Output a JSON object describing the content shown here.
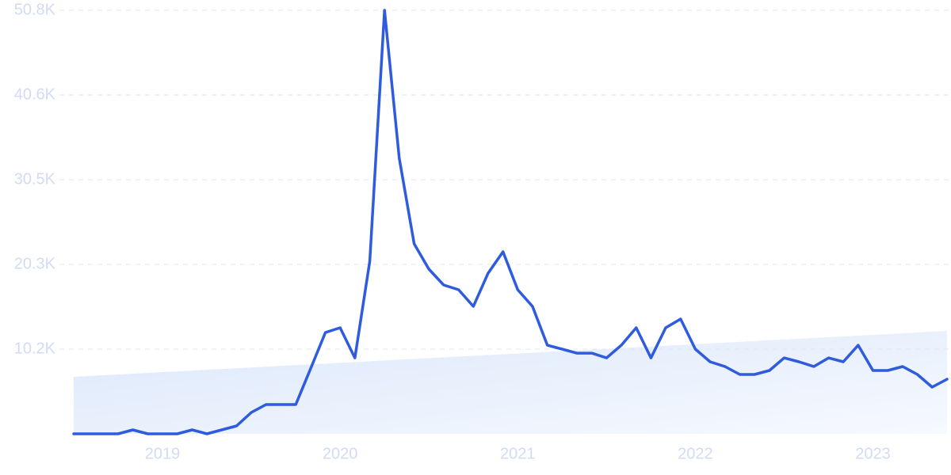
{
  "chart_data": {
    "type": "line",
    "x": [
      2018.5,
      2018.583,
      2018.667,
      2018.75,
      2018.833,
      2018.917,
      2019,
      2019.083,
      2019.167,
      2019.25,
      2019.333,
      2019.417,
      2019.5,
      2019.583,
      2019.667,
      2019.75,
      2019.833,
      2019.917,
      2020,
      2020.083,
      2020.167,
      2020.25,
      2020.333,
      2020.417,
      2020.5,
      2020.583,
      2020.667,
      2020.75,
      2020.833,
      2020.917,
      2021,
      2021.083,
      2021.167,
      2021.25,
      2021.333,
      2021.417,
      2021.5,
      2021.583,
      2021.667,
      2021.75,
      2021.833,
      2021.917,
      2022,
      2022.083,
      2022.167,
      2022.25,
      2022.333,
      2022.417,
      2022.5,
      2022.583,
      2022.667,
      2022.75,
      2022.833,
      2022.917,
      2023,
      2023.083,
      2023.167,
      2023.25,
      2023.333,
      2023.417
    ],
    "values": [
      0,
      0,
      0,
      0,
      475,
      0,
      0,
      0,
      475,
      0,
      475,
      950,
      2560,
      3510,
      3510,
      3510,
      7790,
      12150,
      12720,
      9110,
      20700,
      50800,
      33040,
      22790,
      19750,
      17850,
      17280,
      15290,
      19270,
      21840,
      17280,
      15290,
      10630,
      10160,
      9680,
      9680,
      9110,
      10630,
      12720,
      9110,
      12720,
      13770,
      10160,
      8640,
      8070,
      7120,
      7120,
      7600,
      9110,
      8640,
      8070,
      9110,
      8640,
      10630,
      7600,
      7600,
      8070,
      7120,
      5600,
      6550
    ],
    "color": "#2f5bde",
    "trend": [
      6840,
      12340
    ],
    "trend_color": "#dce8fb",
    "xlim": [
      2018.5,
      2023.417
    ],
    "xticks": [
      2019,
      2020,
      2021,
      2022,
      2023
    ],
    "ylim": [
      0,
      50800
    ],
    "yticks": [
      {
        "value": 10160,
        "label": "10.2K"
      },
      {
        "value": 20320,
        "label": "20.3K"
      },
      {
        "value": 30480,
        "label": "30.5K"
      },
      {
        "value": 40640,
        "label": "40.6K"
      },
      {
        "value": 50800,
        "label": "50.8K"
      }
    ],
    "grid": true
  }
}
